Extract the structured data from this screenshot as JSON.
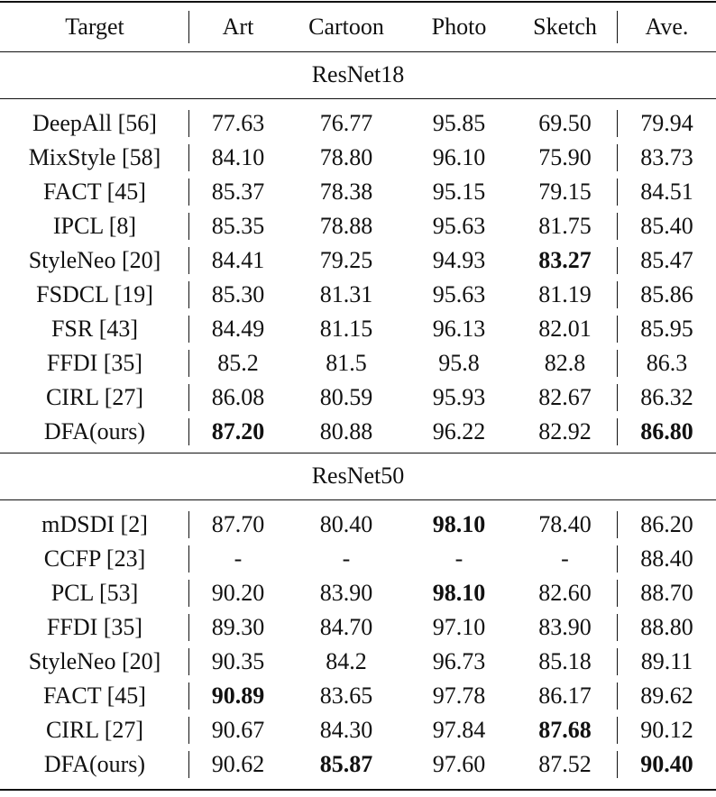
{
  "header": [
    "Target",
    "Art",
    "Cartoon",
    "Photo",
    "Sketch",
    "Ave."
  ],
  "groups": [
    {
      "name": "ResNet18",
      "rows": [
        {
          "method": "DeepAll [56]",
          "values": [
            "77.63",
            "76.77",
            "95.85",
            "69.50",
            "79.94"
          ],
          "bold": [
            false,
            false,
            false,
            false,
            false
          ]
        },
        {
          "method": "MixStyle [58]",
          "values": [
            "84.10",
            "78.80",
            "96.10",
            "75.90",
            "83.73"
          ],
          "bold": [
            false,
            false,
            false,
            false,
            false
          ]
        },
        {
          "method": "FACT [45]",
          "values": [
            "85.37",
            "78.38",
            "95.15",
            "79.15",
            "84.51"
          ],
          "bold": [
            false,
            false,
            false,
            false,
            false
          ]
        },
        {
          "method": "IPCL [8]",
          "values": [
            "85.35",
            "78.88",
            "95.63",
            "81.75",
            "85.40"
          ],
          "bold": [
            false,
            false,
            false,
            false,
            false
          ]
        },
        {
          "method": "StyleNeo [20]",
          "values": [
            "84.41",
            "79.25",
            "94.93",
            "83.27",
            "85.47"
          ],
          "bold": [
            false,
            false,
            false,
            true,
            false
          ]
        },
        {
          "method": "FSDCL [19]",
          "values": [
            "85.30",
            "81.31",
            "95.63",
            "81.19",
            "85.86"
          ],
          "bold": [
            false,
            false,
            false,
            false,
            false
          ]
        },
        {
          "method": "FSR [43]",
          "values": [
            "84.49",
            "81.15",
            "96.13",
            "82.01",
            "85.95"
          ],
          "bold": [
            false,
            false,
            false,
            false,
            false
          ]
        },
        {
          "method": "FFDI [35]",
          "values": [
            "85.2",
            "81.5",
            "95.8",
            "82.8",
            "86.3"
          ],
          "bold": [
            false,
            false,
            false,
            false,
            false
          ]
        },
        {
          "method": "CIRL [27]",
          "values": [
            "86.08",
            "80.59",
            "95.93",
            "82.67",
            "86.32"
          ],
          "bold": [
            false,
            false,
            false,
            false,
            false
          ]
        },
        {
          "method": "DFA(ours)",
          "values": [
            "87.20",
            "80.88",
            "96.22",
            "82.92",
            "86.80"
          ],
          "bold": [
            true,
            false,
            false,
            false,
            true
          ]
        }
      ]
    },
    {
      "name": "ResNet50",
      "rows": [
        {
          "method": "mDSDI [2]",
          "values": [
            "87.70",
            "80.40",
            "98.10",
            "78.40",
            "86.20"
          ],
          "bold": [
            false,
            false,
            true,
            false,
            false
          ]
        },
        {
          "method": "CCFP [23]",
          "values": [
            "-",
            "-",
            "-",
            "-",
            "88.40"
          ],
          "bold": [
            false,
            false,
            false,
            false,
            false
          ]
        },
        {
          "method": "PCL [53]",
          "values": [
            "90.20",
            "83.90",
            "98.10",
            "82.60",
            "88.70"
          ],
          "bold": [
            false,
            false,
            true,
            false,
            false
          ]
        },
        {
          "method": "FFDI [35]",
          "values": [
            "89.30",
            "84.70",
            "97.10",
            "83.90",
            "88.80"
          ],
          "bold": [
            false,
            false,
            false,
            false,
            false
          ]
        },
        {
          "method": "StyleNeo [20]",
          "values": [
            "90.35",
            "84.2",
            "96.73",
            "85.18",
            "89.11"
          ],
          "bold": [
            false,
            false,
            false,
            false,
            false
          ]
        },
        {
          "method": "FACT [45]",
          "values": [
            "90.89",
            "83.65",
            "97.78",
            "86.17",
            "89.62"
          ],
          "bold": [
            true,
            false,
            false,
            false,
            false
          ]
        },
        {
          "method": "CIRL [27]",
          "values": [
            "90.67",
            "84.30",
            "97.84",
            "87.68",
            "90.12"
          ],
          "bold": [
            false,
            false,
            false,
            true,
            false
          ]
        },
        {
          "method": "DFA(ours)",
          "values": [
            "90.62",
            "85.87",
            "97.60",
            "87.52",
            "90.40"
          ],
          "bold": [
            false,
            true,
            false,
            false,
            true
          ]
        }
      ]
    }
  ]
}
